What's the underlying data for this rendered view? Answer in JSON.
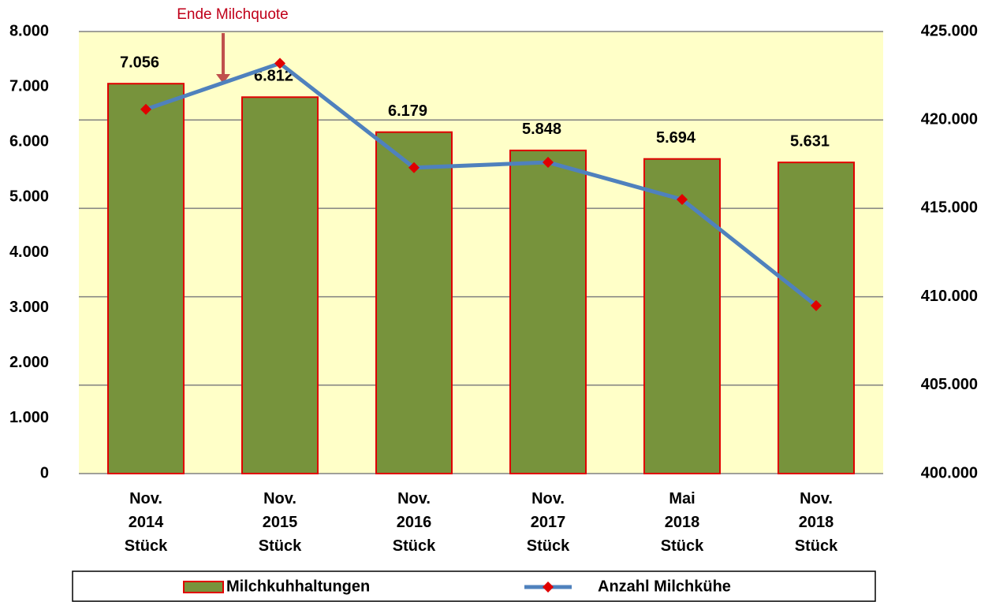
{
  "chart_data": {
    "type": "bar_line",
    "annotation": "Ende Milchquote",
    "categories": [
      "Nov. 2014 Stück",
      "Nov. 2015 Stück",
      "Nov. 2016 Stück",
      "Nov. 2017 Stück",
      "Mai 2018 Stück",
      "Nov. 2018 Stück"
    ],
    "series": [
      {
        "name": "Milchkuhhaltungen",
        "color": "#77933c",
        "edge_color": "#e00000",
        "values": [
          7056,
          6812,
          6179,
          5848,
          5694,
          5631
        ],
        "value_labels": [
          "7.056",
          "6.812",
          "6.179",
          "5.848",
          "5.694",
          "5.631"
        ]
      },
      {
        "name": "Anzahl Milchkühe",
        "color": "#4f81bd",
        "marker_color": "#e00000",
        "axis": "y2",
        "values": [
          420600,
          423200,
          417300,
          417600,
          415500,
          409500
        ]
      }
    ],
    "ylim": [
      0,
      8000
    ],
    "yticks": [
      0,
      {
        "value": 1000,
        "label": "1.000"
      },
      {
        "value": 2000,
        "label": "2.000"
      },
      {
        "value": 3000,
        "label": "3.000"
      },
      {
        "value": 4000,
        "label": "4.000"
      },
      {
        "value": 5000,
        "label": "5.000"
      },
      {
        "value": 6000,
        "label": "6.000"
      },
      {
        "value": 7000,
        "label": "7.000"
      },
      {
        "value": 8000,
        "label": "8.000"
      }
    ],
    "y2lim": [
      400000,
      425000
    ],
    "y2ticks": [
      {
        "value": 400000,
        "label": "400.000"
      },
      {
        "value": 405000,
        "label": "405.000"
      },
      {
        "value": 410000,
        "label": "410.000"
      },
      {
        "value": 415000,
        "label": "415.000"
      },
      {
        "value": 420000,
        "label": "420.000"
      },
      {
        "value": 425000,
        "label": "425.000"
      }
    ],
    "grid": true,
    "plot_background": "#ffffc8"
  }
}
